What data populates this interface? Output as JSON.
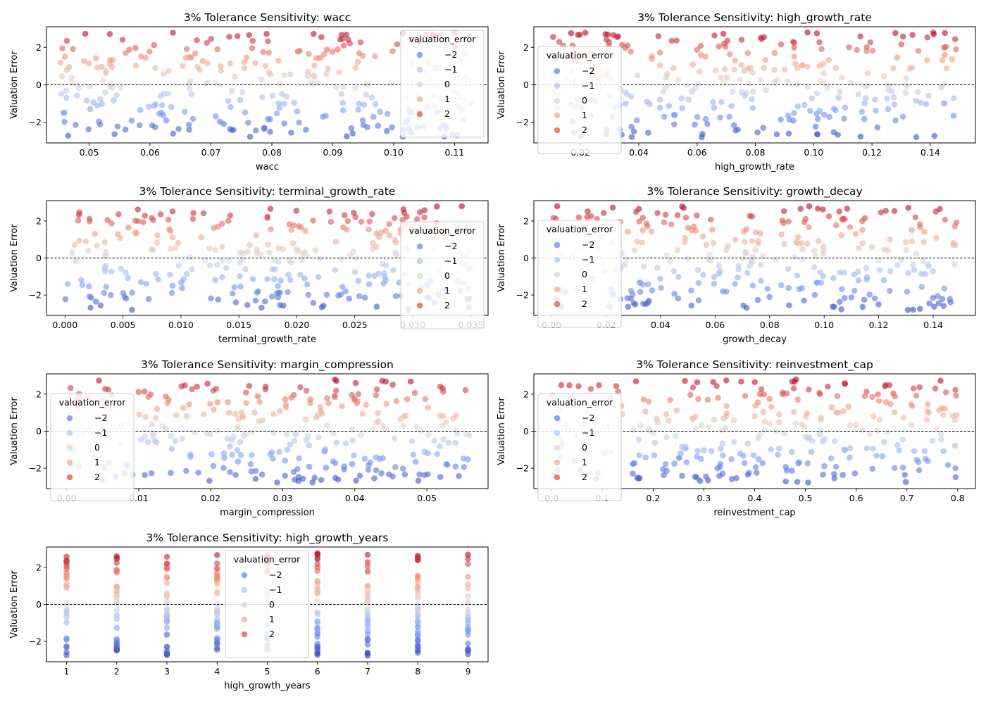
{
  "figure": {
    "ylabel": "Valuation Error",
    "legend_title": "valuation_error",
    "legend_entries": [
      {
        "label": "−2",
        "value": -2,
        "color": "#7a97f0"
      },
      {
        "label": "−1",
        "value": -1,
        "color": "#b8cff8"
      },
      {
        "label": "0",
        "value": 0,
        "color": "#dedcdb"
      },
      {
        "label": "1",
        "value": 1,
        "color": "#f3b79c"
      },
      {
        "label": "2",
        "value": 2,
        "color": "#de6e5a"
      }
    ],
    "colormap": "coolwarm",
    "point_alpha": 0.6,
    "zero_line": {
      "y": 0,
      "style": "dashed"
    }
  },
  "chart_data": [
    {
      "type": "scatter",
      "title": "3% Tolerance Sensitivity: wacc",
      "xlabel": "wacc",
      "ylabel": "Valuation Error",
      "xlim": [
        0.043,
        0.1155
      ],
      "ylim": [
        -3.1,
        3.1
      ],
      "xticks": [
        0.05,
        0.06,
        0.07,
        0.08,
        0.09,
        0.1,
        0.11
      ],
      "xtick_labels": [
        "0.05",
        "0.06",
        "0.07",
        "0.08",
        "0.09",
        "0.10",
        "0.11"
      ],
      "yticks": [
        -2,
        0,
        2
      ],
      "ytick_labels": [
        "−2",
        "0",
        "2"
      ],
      "legend_loc": "upper right",
      "x_distribution": {
        "type": "uniform",
        "min": 0.045,
        "max": 0.113
      },
      "y_distribution": {
        "type": "uniform",
        "min": -2.8,
        "max": 2.8
      },
      "n_points": 300
    },
    {
      "type": "scatter",
      "title": "3% Tolerance Sensitivity: high_growth_rate",
      "xlabel": "high_growth_rate",
      "ylabel": "Valuation Error",
      "xlim": [
        0.004,
        0.1555
      ],
      "ylim": [
        -3.1,
        3.1
      ],
      "xticks": [
        0.02,
        0.04,
        0.06,
        0.08,
        0.1,
        0.12,
        0.14
      ],
      "xtick_labels": [
        "0.02",
        "0.04",
        "0.06",
        "0.08",
        "0.10",
        "0.12",
        "0.14"
      ],
      "yticks": [
        -2,
        0,
        2
      ],
      "ytick_labels": [
        "−2",
        "0",
        "2"
      ],
      "legend_loc": "upper left",
      "x_distribution": {
        "type": "uniform",
        "min": 0.01,
        "max": 0.15
      },
      "y_distribution": {
        "type": "uniform",
        "min": -2.8,
        "max": 2.8
      },
      "n_points": 300
    },
    {
      "type": "scatter",
      "title": "3% Tolerance Sensitivity: terminal_growth_rate",
      "xlabel": "terminal_growth_rate",
      "ylabel": "Valuation Error",
      "xlim": [
        -0.0016,
        0.0365
      ],
      "ylim": [
        -3.1,
        3.1
      ],
      "xticks": [
        0.0,
        0.005,
        0.01,
        0.015,
        0.02,
        0.025,
        0.03,
        0.035
      ],
      "xtick_labels": [
        "0.000",
        "0.005",
        "0.010",
        "0.015",
        "0.020",
        "0.025",
        "0.030",
        "0.035"
      ],
      "yticks": [
        -2,
        0,
        2
      ],
      "ytick_labels": [
        "−2",
        "0",
        "2"
      ],
      "legend_loc": "center right",
      "x_distribution": {
        "type": "uniform",
        "min": 0.0,
        "max": 0.035
      },
      "y_distribution": {
        "type": "uniform",
        "min": -2.8,
        "max": 2.8
      },
      "n_points": 300
    },
    {
      "type": "scatter",
      "title": "3% Tolerance Sensitivity: growth_decay",
      "xlabel": "growth_decay",
      "ylabel": "Valuation Error",
      "xlim": [
        -0.0065,
        0.1555
      ],
      "ylim": [
        -3.1,
        3.1
      ],
      "xticks": [
        0.0,
        0.02,
        0.04,
        0.06,
        0.08,
        0.1,
        0.12,
        0.14
      ],
      "xtick_labels": [
        "0.00",
        "0.02",
        "0.04",
        "0.06",
        "0.08",
        "0.10",
        "0.12",
        "0.14"
      ],
      "yticks": [
        -2,
        0,
        2
      ],
      "ytick_labels": [
        "−2",
        "0",
        "2"
      ],
      "legend_loc": "upper left",
      "x_distribution": {
        "type": "uniform",
        "min": 0.0,
        "max": 0.15
      },
      "y_distribution": {
        "type": "uniform",
        "min": -2.8,
        "max": 2.8
      },
      "n_points": 300
    },
    {
      "type": "scatter",
      "title": "3% Tolerance Sensitivity: margin_compression",
      "xlabel": "margin_compression",
      "ylabel": "Valuation Error",
      "xlim": [
        -0.0028,
        0.0585
      ],
      "ylim": [
        -3.1,
        3.1
      ],
      "xticks": [
        0.0,
        0.01,
        0.02,
        0.03,
        0.04,
        0.05
      ],
      "xtick_labels": [
        "0.00",
        "0.01",
        "0.02",
        "0.03",
        "0.04",
        "0.05"
      ],
      "yticks": [
        -2,
        0,
        2
      ],
      "ytick_labels": [
        "−2",
        "0",
        "2"
      ],
      "legend_loc": "center left",
      "x_distribution": {
        "type": "uniform",
        "min": 0.0,
        "max": 0.056
      },
      "y_distribution": {
        "type": "uniform",
        "min": -2.8,
        "max": 2.8
      },
      "n_points": 300
    },
    {
      "type": "scatter",
      "title": "3% Tolerance Sensitivity: reinvestment_cap",
      "xlabel": "reinvestment_cap",
      "ylabel": "Valuation Error",
      "xlim": [
        -0.035,
        0.835
      ],
      "ylim": [
        -3.1,
        3.1
      ],
      "xticks": [
        0.0,
        0.1,
        0.2,
        0.3,
        0.4,
        0.5,
        0.6,
        0.7,
        0.8
      ],
      "xtick_labels": [
        "0.0",
        "0.1",
        "0.2",
        "0.3",
        "0.4",
        "0.5",
        "0.6",
        "0.7",
        "0.8"
      ],
      "yticks": [
        -2,
        0,
        2
      ],
      "ytick_labels": [
        "−2",
        "0",
        "2"
      ],
      "legend_loc": "upper left",
      "x_distribution": {
        "type": "uniform",
        "min": 0.0,
        "max": 0.8
      },
      "y_distribution": {
        "type": "uniform",
        "min": -2.8,
        "max": 2.8
      },
      "n_points": 300
    },
    {
      "type": "scatter",
      "title": "3% Tolerance Sensitivity: high_growth_years",
      "xlabel": "high_growth_years",
      "ylabel": "Valuation Error",
      "xlim": [
        0.6,
        9.4
      ],
      "ylim": [
        -3.1,
        3.1
      ],
      "xticks": [
        1,
        2,
        3,
        4,
        5,
        6,
        7,
        8,
        9
      ],
      "xtick_labels": [
        "1",
        "2",
        "3",
        "4",
        "5",
        "6",
        "7",
        "8",
        "9"
      ],
      "yticks": [
        -2,
        0,
        2
      ],
      "ytick_labels": [
        "−2",
        "0",
        "2"
      ],
      "legend_loc": "upper center",
      "x_distribution": {
        "type": "discrete",
        "values": [
          1,
          2,
          3,
          4,
          5,
          6,
          7,
          8,
          9
        ]
      },
      "y_distribution": {
        "type": "uniform",
        "min": -2.8,
        "max": 2.8
      },
      "n_points": 300
    }
  ]
}
